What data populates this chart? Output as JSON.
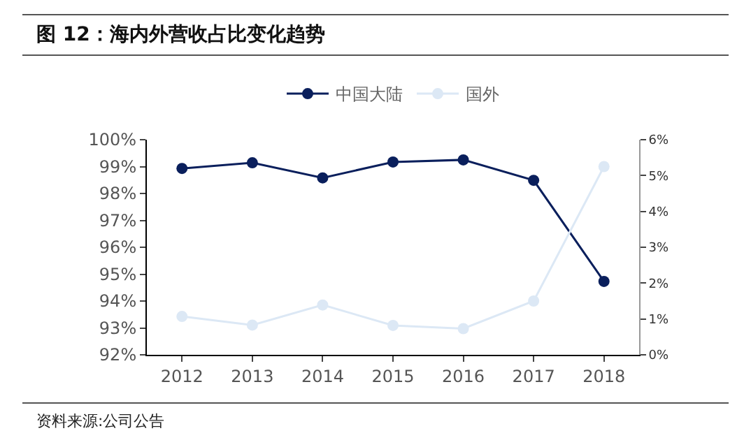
{
  "chart_data": {
    "type": "line",
    "title": "图 12：海内外营收占比变化趋势",
    "categories": [
      "2012",
      "2013",
      "2014",
      "2015",
      "2016",
      "2017",
      "2018"
    ],
    "series": [
      {
        "name": "中国大陆",
        "color": "#0a1f5c",
        "values": [
          98.93,
          99.14,
          98.58,
          99.17,
          99.25,
          98.49,
          94.73
        ]
      },
      {
        "name": "国外",
        "color": "#dce8f5",
        "axis": "y2",
        "values": [
          1.07,
          0.83,
          1.39,
          0.82,
          0.73,
          1.5,
          5.25
        ]
      }
    ],
    "ylim": [
      92,
      100
    ],
    "yticks": [
      {
        "value": 92,
        "label": "92%"
      },
      {
        "value": 93,
        "label": "93%"
      },
      {
        "value": 94,
        "label": "94%"
      },
      {
        "value": 95,
        "label": "95%"
      },
      {
        "value": 96,
        "label": "96%"
      },
      {
        "value": 97,
        "label": "97%"
      },
      {
        "value": 98,
        "label": "98%"
      },
      {
        "value": 99,
        "label": "99%"
      },
      {
        "value": 100,
        "label": "100%"
      }
    ],
    "y2lim": [
      0,
      6
    ],
    "y2ticks": [
      {
        "value": 0,
        "label": "0%"
      },
      {
        "value": 1,
        "label": "1%"
      },
      {
        "value": 2,
        "label": "2%"
      },
      {
        "value": 3,
        "label": "3%"
      },
      {
        "value": 4,
        "label": "4%"
      },
      {
        "value": 5,
        "label": "5%"
      },
      {
        "value": 6,
        "label": "6%"
      }
    ],
    "grid": false,
    "legend": "top",
    "marker": "circle",
    "line_style": "solid",
    "annotations": [
      "资料来源:公司公告"
    ]
  }
}
